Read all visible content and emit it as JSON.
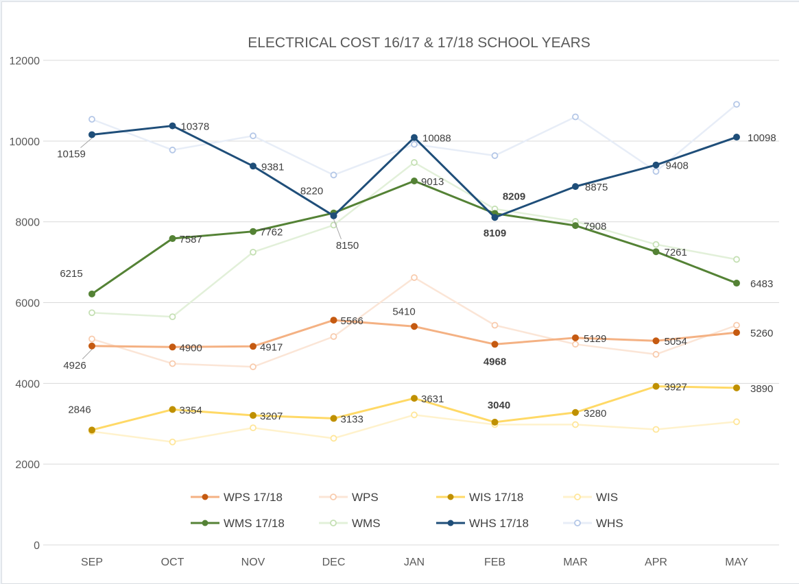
{
  "chart_data": {
    "type": "line",
    "title": "ELECTRICAL COST  16/17  & 17/18 SCHOOL YEARS",
    "categories": [
      "SEP",
      "OCT",
      "NOV",
      "DEC",
      "JAN",
      "FEB",
      "MAR",
      "APR",
      "MAY"
    ],
    "ylim": [
      0,
      12000
    ],
    "yticks": [
      0,
      2000,
      4000,
      6000,
      8000,
      10000,
      12000
    ],
    "grid": true,
    "legend_position": "bottom",
    "series": [
      {
        "name": "WPS 17/18",
        "color": "#f4b183",
        "marker_color": "#c55a11",
        "values": [
          4926,
          4900,
          4917,
          5566,
          5410,
          4968,
          5129,
          5054,
          5260
        ],
        "labels": true
      },
      {
        "name": "WPS",
        "color": "#fbe5d6",
        "marker_color": "#f8cbad",
        "values": [
          5100,
          4490,
          4410,
          5160,
          6620,
          5440,
          4970,
          4720,
          5440
        ],
        "labels": false
      },
      {
        "name": "WIS 17/18",
        "color": "#ffd966",
        "marker_color": "#bf9000",
        "values": [
          2846,
          3354,
          3207,
          3133,
          3631,
          3040,
          3280,
          3927,
          3890
        ],
        "labels": true
      },
      {
        "name": "WIS",
        "color": "#fff2cc",
        "marker_color": "#ffe699",
        "values": [
          2810,
          2550,
          2900,
          2640,
          3220,
          2980,
          2980,
          2860,
          3050
        ],
        "labels": false
      },
      {
        "name": "WMS 17/18",
        "color": "#548235",
        "marker_color": "#548235",
        "values": [
          6215,
          7587,
          7762,
          8220,
          9013,
          8209,
          7908,
          7261,
          6483
        ],
        "labels": true
      },
      {
        "name": "WMS",
        "color": "#e2f0d9",
        "marker_color": "#c5e0b4",
        "values": [
          5750,
          5650,
          7250,
          7920,
          9470,
          8320,
          8010,
          7440,
          7070
        ],
        "labels": false
      },
      {
        "name": "WHS 17/18",
        "color": "#1f4e79",
        "marker_color": "#1f4e79",
        "values": [
          10159,
          10378,
          9381,
          8150,
          10088,
          8109,
          8875,
          9408,
          10098
        ],
        "labels": true
      },
      {
        "name": "WHS",
        "color": "#e7edf7",
        "marker_color": "#b4c7e7",
        "values": [
          10540,
          9780,
          10130,
          9160,
          9920,
          9640,
          10600,
          9250,
          10910
        ],
        "labels": false
      }
    ]
  }
}
